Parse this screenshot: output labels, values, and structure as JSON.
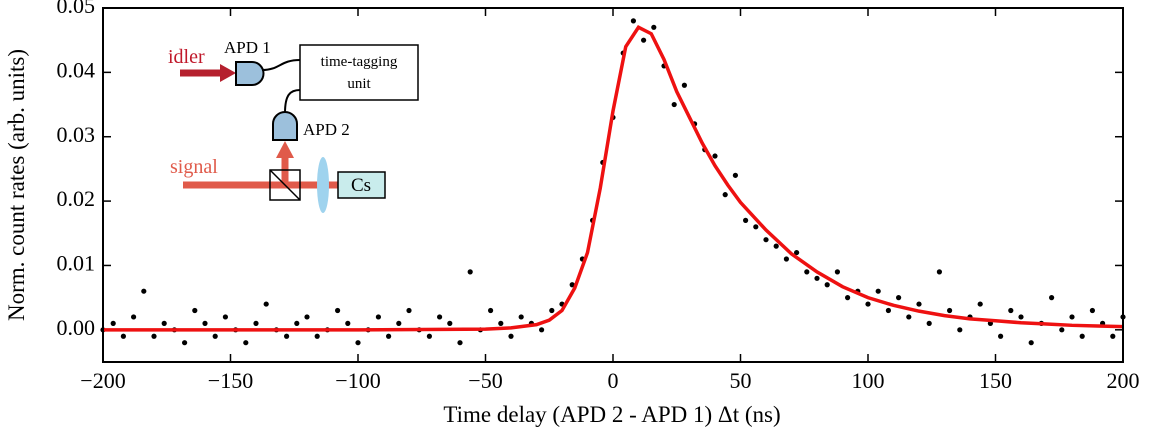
{
  "chart_data": {
    "type": "scatter",
    "xlabel": "Time delay (APD 2 - APD 1) Δt (ns)",
    "ylabel": "Norm. count rates (arb. units)",
    "xlim": [
      -200,
      200
    ],
    "ylim": [
      -0.005,
      0.05
    ],
    "xticks": [
      {
        "value": -200,
        "label": "−200"
      },
      {
        "value": -150,
        "label": "−150"
      },
      {
        "value": -100,
        "label": "−100"
      },
      {
        "value": -50,
        "label": "−50"
      },
      0,
      50,
      100,
      150,
      200
    ],
    "yticks": [
      {
        "value": 0,
        "label": "0.00"
      },
      0.01,
      0.02,
      0.03,
      0.04,
      0.05
    ],
    "series": [
      {
        "type": "scatter",
        "color": "#000000",
        "x": [
          -200,
          -196,
          -192,
          -188,
          -184,
          -180,
          -176,
          -172,
          -168,
          -164,
          -160,
          -156,
          -152,
          -148,
          -144,
          -140,
          -136,
          -132,
          -128,
          -124,
          -120,
          -116,
          -112,
          -108,
          -104,
          -100,
          -96,
          -92,
          -88,
          -84,
          -80,
          -76,
          -72,
          -68,
          -64,
          -60,
          -56,
          -52,
          -48,
          -44,
          -40,
          -36,
          -32,
          -28,
          -24,
          -20,
          -16,
          -12,
          -8,
          -4,
          0,
          4,
          8,
          12,
          16,
          20,
          24,
          28,
          32,
          36,
          40,
          44,
          48,
          52,
          56,
          60,
          64,
          68,
          72,
          76,
          80,
          84,
          88,
          92,
          96,
          100,
          104,
          108,
          112,
          116,
          120,
          124,
          128,
          132,
          136,
          140,
          144,
          148,
          152,
          156,
          160,
          164,
          168,
          172,
          176,
          180,
          184,
          188,
          192,
          196,
          200
        ],
        "values": [
          0.0,
          0.001,
          -0.001,
          0.002,
          0.006,
          -0.001,
          0.001,
          0.0,
          -0.002,
          0.003,
          0.001,
          -0.001,
          0.002,
          0.0,
          -0.002,
          0.001,
          0.004,
          0.0,
          -0.001,
          0.001,
          0.002,
          -0.001,
          0.0,
          0.003,
          0.001,
          -0.002,
          0.0,
          0.002,
          -0.001,
          0.001,
          0.003,
          0.0,
          -0.001,
          0.002,
          0.001,
          -0.002,
          0.009,
          0.0,
          0.003,
          0.001,
          -0.001,
          0.002,
          0.001,
          0.0,
          0.003,
          0.004,
          0.007,
          0.011,
          0.017,
          0.026,
          0.033,
          0.043,
          0.048,
          0.045,
          0.047,
          0.041,
          0.035,
          0.038,
          0.032,
          0.028,
          0.027,
          0.021,
          0.024,
          0.017,
          0.016,
          0.014,
          0.013,
          0.011,
          0.012,
          0.009,
          0.008,
          0.007,
          0.009,
          0.005,
          0.006,
          0.004,
          0.006,
          0.003,
          0.005,
          0.002,
          0.004,
          0.001,
          0.009,
          0.003,
          0.0,
          0.002,
          0.004,
          0.001,
          -0.001,
          0.003,
          0.002,
          -0.002,
          0.001,
          0.005,
          0.0,
          0.002,
          -0.001,
          0.003,
          0.001,
          -0.001,
          0.002
        ]
      },
      {
        "type": "line",
        "color": "#ee1111",
        "x": [
          -200,
          -100,
          -50,
          -40,
          -30,
          -25,
          -20,
          -15,
          -10,
          -5,
          0,
          5,
          10,
          15,
          20,
          25,
          30,
          35,
          40,
          45,
          50,
          60,
          70,
          80,
          90,
          100,
          110,
          120,
          130,
          140,
          150,
          160,
          170,
          180,
          190,
          200
        ],
        "values": [
          0,
          0,
          0.0001,
          0.0003,
          0.0008,
          0.0015,
          0.003,
          0.0065,
          0.012,
          0.022,
          0.034,
          0.044,
          0.047,
          0.046,
          0.042,
          0.037,
          0.033,
          0.029,
          0.0255,
          0.0225,
          0.0198,
          0.0155,
          0.0118,
          0.009,
          0.0067,
          0.005,
          0.0038,
          0.0029,
          0.0022,
          0.0017,
          0.0014,
          0.0011,
          0.0009,
          0.0007,
          0.0006,
          0.0005
        ]
      }
    ],
    "inset": {
      "idler": "idler",
      "apd1": "APD 1",
      "unit_line1": "time-tagging",
      "unit_line2": "unit",
      "apd2": "APD 2",
      "signal": "signal",
      "cell": "Cs"
    }
  }
}
